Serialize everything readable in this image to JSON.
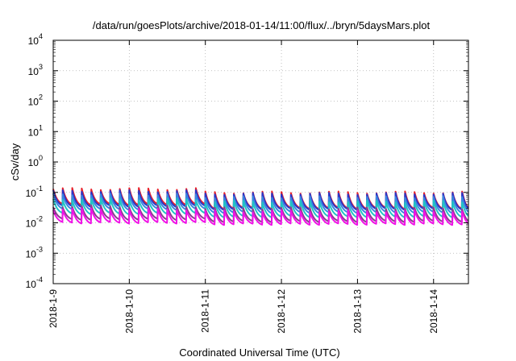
{
  "chart_data": {
    "type": "line",
    "title": "/data/run/goesPlots/archive/2018-01-14/11:00/flux/../bryn/5daysMars.plot",
    "xlabel": "Coordinated Universal Time (UTC)",
    "ylabel": "cSv/day",
    "yscale": "log",
    "ylim": [
      0.0001,
      10000
    ],
    "y_ticks": [
      {
        "base": "10",
        "exp": "-4"
      },
      {
        "base": "10",
        "exp": "-3"
      },
      {
        "base": "10",
        "exp": "-2"
      },
      {
        "base": "10",
        "exp": "-1"
      },
      {
        "base": "10",
        "exp": "0"
      },
      {
        "base": "10",
        "exp": "1"
      },
      {
        "base": "10",
        "exp": "2"
      },
      {
        "base": "10",
        "exp": "3"
      },
      {
        "base": "10",
        "exp": "4"
      }
    ],
    "xlim": [
      "2018-01-09T00:00",
      "2018-01-14T11:00"
    ],
    "x_ticks": [
      "2018-1-9",
      "2018-1-10",
      "2018-1-11",
      "2018-1-12",
      "2018-1-13",
      "2018-1-14"
    ],
    "grid": true,
    "legend": "none",
    "cycle_hours": 3,
    "series": [
      {
        "color": "#e8202a",
        "style": "sawtooth",
        "peak": 0.13,
        "trough": 0.04,
        "peak_after_jan11": 0.1,
        "trough_after_jan11": 0.03
      },
      {
        "color": "#2a36c8",
        "style": "sawtooth",
        "peak": 0.11,
        "trough": 0.035,
        "peak_after_jan11": 0.09,
        "trough_after_jan11": 0.028
      },
      {
        "color": "#3a86e0",
        "style": "sawtooth",
        "peak": 0.085,
        "trough": 0.028,
        "peak_after_jan11": 0.07,
        "trough_after_jan11": 0.022
      },
      {
        "color": "#21c4c4",
        "style": "sawtooth",
        "peak": 0.06,
        "trough": 0.02,
        "peak_after_jan11": 0.05,
        "trough_after_jan11": 0.016
      },
      {
        "color": "#8a3d8f",
        "style": "sawtooth",
        "peak": 0.035,
        "trough": 0.013,
        "peak_after_jan11": 0.03,
        "trough_after_jan11": 0.011
      },
      {
        "color": "#f012e6",
        "style": "sawtooth",
        "peak": 0.028,
        "trough": 0.01,
        "peak_after_jan11": 0.024,
        "trough_after_jan11": 0.009
      }
    ]
  }
}
